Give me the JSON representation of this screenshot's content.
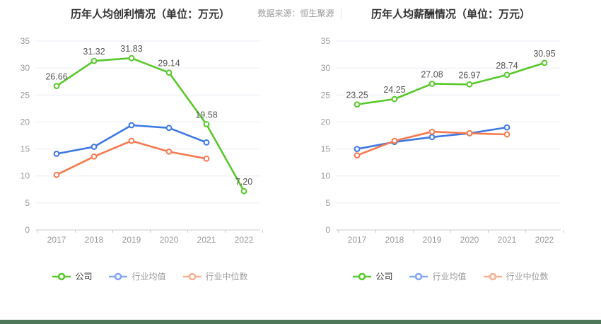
{
  "page": {
    "watermark": "数据来源：恒生聚源",
    "background": "#ffffff",
    "bottom_bar_color": "#4e7759"
  },
  "style": {
    "grid_color": "#e9edf6",
    "axis_line_color": "#cccccc",
    "axis_label_color": "#999999",
    "data_label_color": "#555555",
    "title_color": "#333333"
  },
  "chart_data": [
    {
      "type": "line",
      "title": "历年人均创利情况（单位：万元）",
      "categories": [
        "2017",
        "2018",
        "2019",
        "2020",
        "2021",
        "2022"
      ],
      "ylim": [
        0,
        35
      ],
      "ystep": 5,
      "grid": true,
      "legend_position": "bottom",
      "series": [
        {
          "name": "公司",
          "color": "#58c82b",
          "marker_color": "#58c82b",
          "legend_text_color": "#333333",
          "values": [
            26.66,
            31.32,
            31.83,
            29.14,
            19.58,
            7.2
          ],
          "labels": [
            "26.66",
            "31.32",
            "31.83",
            "29.14",
            "19.58",
            "7.20"
          ]
        },
        {
          "name": "行业均值",
          "color": "#3d78e2",
          "marker_color": "#84a8f0",
          "legend_text_color": "#999999",
          "values": [
            14.1,
            15.4,
            19.4,
            18.9,
            16.2,
            null
          ]
        },
        {
          "name": "行业中位数",
          "color": "#f5794e",
          "marker_color": "#f8b093",
          "legend_text_color": "#999999",
          "values": [
            10.2,
            13.6,
            16.5,
            14.5,
            13.2,
            null
          ]
        }
      ]
    },
    {
      "type": "line",
      "title": "历年人均薪酬情况（单位：万元）",
      "categories": [
        "2017",
        "2018",
        "2019",
        "2020",
        "2021",
        "2022"
      ],
      "ylim": [
        0,
        35
      ],
      "ystep": 5,
      "grid": true,
      "legend_position": "bottom",
      "series": [
        {
          "name": "公司",
          "color": "#58c82b",
          "marker_color": "#58c82b",
          "legend_text_color": "#333333",
          "values": [
            23.25,
            24.25,
            27.08,
            26.97,
            28.74,
            30.95
          ],
          "labels": [
            "23.25",
            "24.25",
            "27.08",
            "26.97",
            "28.74",
            "30.95"
          ]
        },
        {
          "name": "行业均值",
          "color": "#3d78e2",
          "marker_color": "#84a8f0",
          "legend_text_color": "#999999",
          "values": [
            15.0,
            16.3,
            17.2,
            17.9,
            19.0,
            null
          ]
        },
        {
          "name": "行业中位数",
          "color": "#f5794e",
          "marker_color": "#f8b093",
          "legend_text_color": "#999999",
          "values": [
            13.8,
            16.5,
            18.2,
            17.9,
            17.7,
            null
          ]
        }
      ]
    }
  ]
}
